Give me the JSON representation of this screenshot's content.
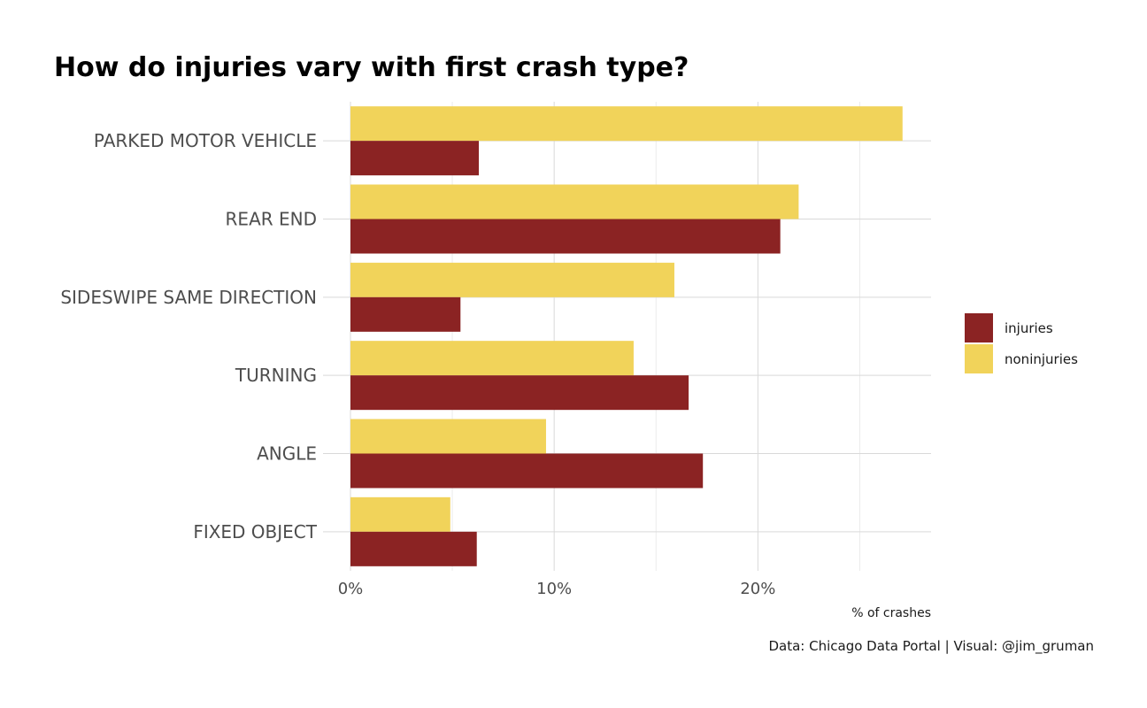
{
  "chart_data": {
    "type": "bar",
    "orientation": "horizontal",
    "title": "How do injuries vary with first crash type?",
    "xlabel": "% of crashes",
    "caption": "Data: Chicago Data Portal | Visual: @jim_gruman",
    "categories": [
      "PARKED MOTOR VEHICLE",
      "REAR END",
      "SIDESWIPE SAME DIRECTION",
      "TURNING",
      "ANGLE",
      "FIXED OBJECT"
    ],
    "series": [
      {
        "name": "injuries",
        "color": "#8b2323",
        "values": [
          6.3,
          21.1,
          5.4,
          16.6,
          17.3,
          6.2
        ]
      },
      {
        "name": "noninjuries",
        "color": "#f1d35a",
        "values": [
          27.1,
          22.0,
          15.9,
          13.9,
          9.6,
          4.9
        ]
      }
    ],
    "xlim": [
      0,
      28.5
    ],
    "x_ticks": [
      0,
      10,
      20
    ],
    "x_tick_labels": [
      "0%",
      "10%",
      "20%"
    ],
    "legend_position": "right",
    "grid": true
  }
}
